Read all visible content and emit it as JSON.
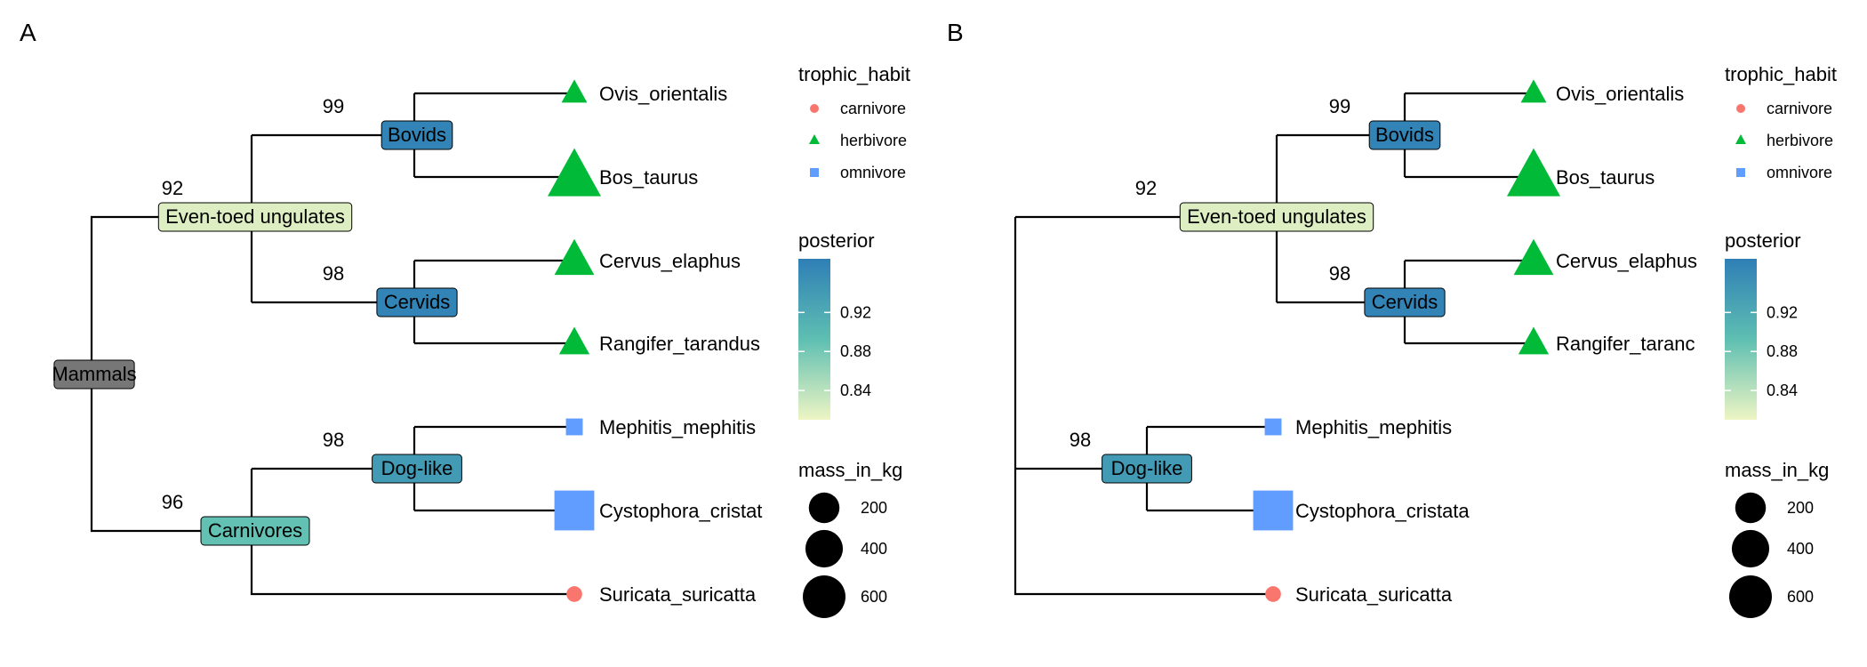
{
  "panels": [
    {
      "label": "A",
      "nodes": {
        "root": {
          "label": "Mammals",
          "posterior": null,
          "support": ""
        },
        "eu": {
          "label": "Even-toed ungulates",
          "posterior": 0.82,
          "support": "92"
        },
        "bov": {
          "label": "Bovids",
          "posterior": 0.97,
          "support": "99"
        },
        "cer": {
          "label": "Cervids",
          "posterior": 0.97,
          "support": "98"
        },
        "car": {
          "label": "Carnivores",
          "posterior": 0.89,
          "support": "96"
        },
        "dog": {
          "label": "Dog-like",
          "posterior": 0.94,
          "support": "98"
        }
      },
      "tips": [
        {
          "id": "ovis",
          "label": "Ovis_orientalis",
          "habit": "herbivore",
          "mass_in_kg": 60
        },
        {
          "id": "bos",
          "label": "Bos_taurus",
          "habit": "herbivore",
          "mass_in_kg": 700
        },
        {
          "id": "cervus",
          "label": "Cervus_elaphus",
          "habit": "herbivore",
          "mass_in_kg": 300
        },
        {
          "id": "rangifer",
          "label": "Rangifer_tarandus",
          "habit": "herbivore",
          "mass_in_kg": 120
        },
        {
          "id": "mephitis",
          "label": "Mephitis_mephitis",
          "habit": "omnivore",
          "mass_in_kg": 3
        },
        {
          "id": "cysto",
          "label": "Cystophora_cristat",
          "habit": "omnivore",
          "mass_in_kg": 300
        },
        {
          "id": "suricata",
          "label": "Suricata_suricatta",
          "habit": "carnivore",
          "mass_in_kg": 1
        }
      ]
    },
    {
      "label": "B",
      "nodes": {
        "root": {
          "label": "",
          "posterior": null,
          "support": ""
        },
        "eu": {
          "label": "Even-toed ungulates",
          "posterior": 0.82,
          "support": "92"
        },
        "bov": {
          "label": "Bovids",
          "posterior": 0.97,
          "support": "99"
        },
        "cer": {
          "label": "Cervids",
          "posterior": 0.97,
          "support": "98"
        },
        "dog": {
          "label": "Dog-like",
          "posterior": 0.94,
          "support": "98"
        }
      },
      "tips": [
        {
          "id": "ovis",
          "label": "Ovis_orientalis",
          "habit": "herbivore",
          "mass_in_kg": 60
        },
        {
          "id": "bos",
          "label": "Bos_taurus",
          "habit": "herbivore",
          "mass_in_kg": 700
        },
        {
          "id": "cervus",
          "label": "Cervus_elaphus",
          "habit": "herbivore",
          "mass_in_kg": 300
        },
        {
          "id": "rangifer",
          "label": "Rangifer_taranc",
          "habit": "herbivore",
          "mass_in_kg": 120
        },
        {
          "id": "mephitis",
          "label": "Mephitis_mephitis",
          "habit": "omnivore",
          "mass_in_kg": 3
        },
        {
          "id": "cysto",
          "label": "Cystophora_cristata",
          "habit": "omnivore",
          "mass_in_kg": 300
        },
        {
          "id": "suricata",
          "label": "Suricata_suricatta",
          "habit": "carnivore",
          "mass_in_kg": 1
        }
      ]
    }
  ],
  "legend": {
    "trophic_habit": {
      "title": "trophic_habit",
      "items": [
        {
          "label": "carnivore",
          "shape": "circle",
          "color": "#F8766D"
        },
        {
          "label": "herbivore",
          "shape": "triangle",
          "color": "#00BA38"
        },
        {
          "label": "omnivore",
          "shape": "square",
          "color": "#619CFF"
        }
      ]
    },
    "posterior": {
      "title": "posterior",
      "ticks": [
        "0.92",
        "0.88",
        "0.84"
      ],
      "tick_values": [
        0.92,
        0.88,
        0.84
      ],
      "range": [
        0.81,
        0.975
      ],
      "low_color": "#EEF5C4",
      "mid_color": "#5EBFB2",
      "high_color": "#2F7FB6"
    },
    "mass_in_kg": {
      "title": "mass_in_kg",
      "items": [
        {
          "label": "200",
          "value": 200
        },
        {
          "label": "400",
          "value": 400
        },
        {
          "label": "600",
          "value": 600
        }
      ]
    }
  },
  "colors": {
    "root_fill": "#777777",
    "line": "#000000"
  }
}
